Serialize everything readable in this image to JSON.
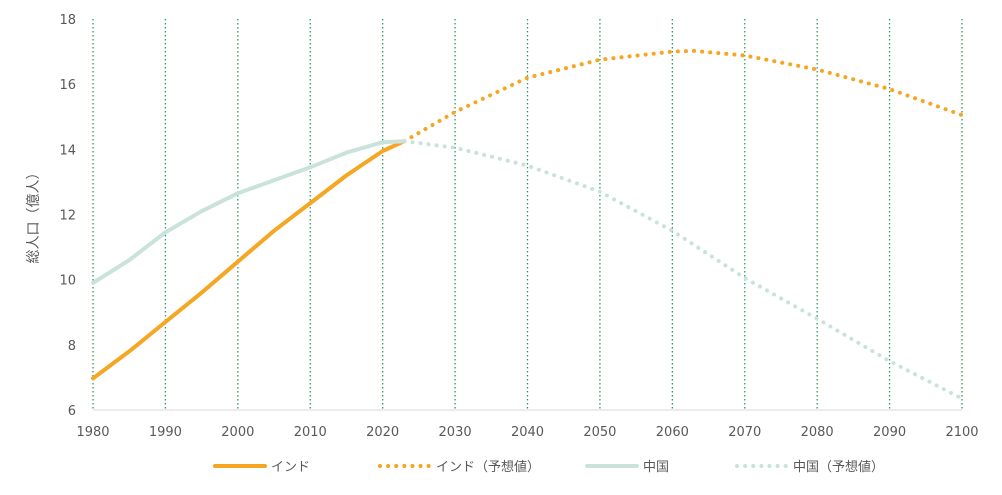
{
  "chart_data": {
    "type": "line",
    "title": "",
    "xlabel": "",
    "ylabel": "総人口（億人）",
    "xlim": [
      1980,
      2100
    ],
    "ylim": [
      6,
      18
    ],
    "x_ticks": [
      1980,
      1990,
      2000,
      2010,
      2020,
      2030,
      2040,
      2050,
      2060,
      2070,
      2080,
      2090,
      2100
    ],
    "y_ticks": [
      6,
      8,
      10,
      12,
      14,
      16,
      18
    ],
    "gridlines": "vertical-dotted",
    "legend_position": "bottom",
    "colors": {
      "india": "#F5A623",
      "china": "#C9E3DC",
      "grid": "#2E9C5E",
      "axis": "#d9d9d9"
    },
    "series": [
      {
        "name": "インド",
        "style": "solid",
        "color": "#F5A623",
        "points": [
          [
            1980,
            6.97
          ],
          [
            1985,
            7.8
          ],
          [
            1990,
            8.7
          ],
          [
            1995,
            9.6
          ],
          [
            2000,
            10.55
          ],
          [
            2005,
            11.5
          ],
          [
            2010,
            12.35
          ],
          [
            2015,
            13.2
          ],
          [
            2020,
            13.95
          ],
          [
            2023,
            14.25
          ]
        ]
      },
      {
        "name": "インド（予想値）",
        "style": "dotted",
        "color": "#F5A623",
        "points": [
          [
            2023,
            14.25
          ],
          [
            2030,
            15.15
          ],
          [
            2040,
            16.2
          ],
          [
            2050,
            16.75
          ],
          [
            2060,
            17.0
          ],
          [
            2063,
            17.02
          ],
          [
            2070,
            16.88
          ],
          [
            2080,
            16.45
          ],
          [
            2090,
            15.85
          ],
          [
            2100,
            15.05
          ]
        ]
      },
      {
        "name": "中国",
        "style": "solid",
        "color": "#C9E3DC",
        "points": [
          [
            1980,
            9.9
          ],
          [
            1985,
            10.6
          ],
          [
            1990,
            11.45
          ],
          [
            1995,
            12.1
          ],
          [
            2000,
            12.65
          ],
          [
            2005,
            13.05
          ],
          [
            2010,
            13.45
          ],
          [
            2015,
            13.9
          ],
          [
            2020,
            14.22
          ],
          [
            2023,
            14.25
          ]
        ]
      },
      {
        "name": "中国（予想値）",
        "style": "dotted",
        "color": "#C9E3DC",
        "points": [
          [
            2023,
            14.25
          ],
          [
            2030,
            14.05
          ],
          [
            2040,
            13.5
          ],
          [
            2050,
            12.7
          ],
          [
            2060,
            11.5
          ],
          [
            2070,
            10.05
          ],
          [
            2080,
            8.8
          ],
          [
            2090,
            7.5
          ],
          [
            2100,
            6.35
          ]
        ]
      }
    ]
  }
}
